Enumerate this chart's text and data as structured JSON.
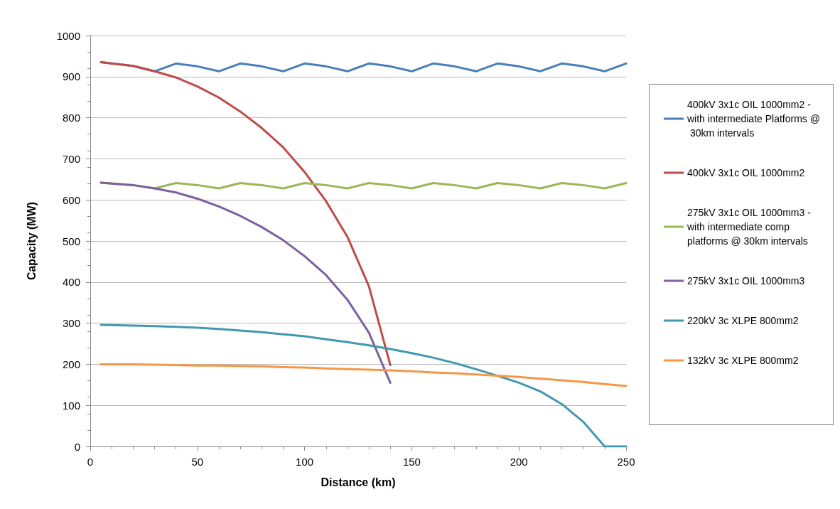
{
  "chart_data": {
    "type": "line",
    "xlabel": "Distance (km)",
    "ylabel": "Capacity (MW)",
    "xlim": [
      0,
      250
    ],
    "xticks": [
      0,
      50,
      100,
      150,
      200,
      250
    ],
    "ylim": [
      0,
      1000
    ],
    "yticks": [
      0,
      100,
      200,
      300,
      400,
      500,
      600,
      700,
      800,
      900,
      1000
    ],
    "grid": "y",
    "legend": "right",
    "marker": "none",
    "line_style": "solid",
    "series": [
      {
        "name": "400kV 3x1c OIL 1000mm2 - with intermediate Platforms @ 30km intervals",
        "color": "#4a7ebb",
        "x": [
          5,
          20,
          30,
          40,
          50,
          60,
          70,
          80,
          90,
          100,
          110,
          120,
          130,
          140,
          150,
          160,
          170,
          180,
          190,
          200,
          210,
          220,
          230,
          240,
          250
        ],
        "values": [
          935,
          926,
          913,
          932,
          925,
          913,
          932,
          925,
          913,
          932,
          925,
          913,
          932,
          925,
          913,
          932,
          925,
          913,
          932,
          925,
          913,
          932,
          925,
          913,
          932
        ]
      },
      {
        "name": "400kV 3x1c OIL 1000mm2",
        "color": "#be4b48",
        "x": [
          5,
          20,
          30,
          40,
          50,
          60,
          70,
          80,
          90,
          100,
          110,
          120,
          130,
          140
        ],
        "values": [
          935,
          926,
          913,
          898,
          876,
          849,
          815,
          775,
          728,
          668,
          597,
          510,
          390,
          198
        ]
      },
      {
        "name": "275kV 3x1c OIL 1000mm3 - with intermediate comp platforms @ 30km intervals",
        "color": "#98b954",
        "x": [
          5,
          20,
          30,
          40,
          50,
          60,
          70,
          80,
          90,
          100,
          110,
          120,
          130,
          140,
          150,
          160,
          170,
          180,
          190,
          200,
          210,
          220,
          230,
          240,
          250
        ],
        "values": [
          642,
          636,
          628,
          641,
          636,
          628,
          641,
          636,
          628,
          641,
          636,
          628,
          641,
          636,
          628,
          641,
          636,
          628,
          641,
          636,
          628,
          641,
          636,
          628,
          641
        ]
      },
      {
        "name": "275kV 3x1c OIL 1000mm3",
        "color": "#7d60a0",
        "x": [
          5,
          20,
          30,
          40,
          50,
          60,
          70,
          80,
          90,
          100,
          110,
          120,
          130,
          140
        ],
        "values": [
          642,
          636,
          628,
          618,
          603,
          584,
          561,
          534,
          502,
          463,
          417,
          357,
          277,
          155
        ]
      },
      {
        "name": "220kV 3c XLPE 800mm2",
        "color": "#4198af",
        "x": [
          5,
          20,
          30,
          40,
          50,
          60,
          70,
          80,
          90,
          100,
          110,
          120,
          130,
          140,
          150,
          160,
          170,
          180,
          190,
          200,
          210,
          220,
          230,
          240,
          250
        ],
        "values": [
          296,
          294,
          293,
          291,
          289,
          286,
          282,
          278,
          273,
          268,
          261,
          254,
          246,
          237,
          227,
          216,
          203,
          188,
          172,
          155,
          134,
          103,
          60,
          0,
          0
        ]
      },
      {
        "name": "132kV 3c XLPE 800mm2",
        "color": "#f79646",
        "x": [
          5,
          20,
          30,
          40,
          50,
          60,
          70,
          80,
          90,
          100,
          110,
          120,
          130,
          140,
          150,
          160,
          170,
          180,
          190,
          200,
          210,
          220,
          230,
          240,
          250
        ],
        "values": [
          200,
          200,
          199,
          198,
          197,
          197,
          196,
          195,
          193,
          192,
          190,
          188,
          187,
          185,
          183,
          180,
          178,
          175,
          172,
          169,
          165,
          161,
          157,
          152,
          147
        ]
      }
    ]
  }
}
